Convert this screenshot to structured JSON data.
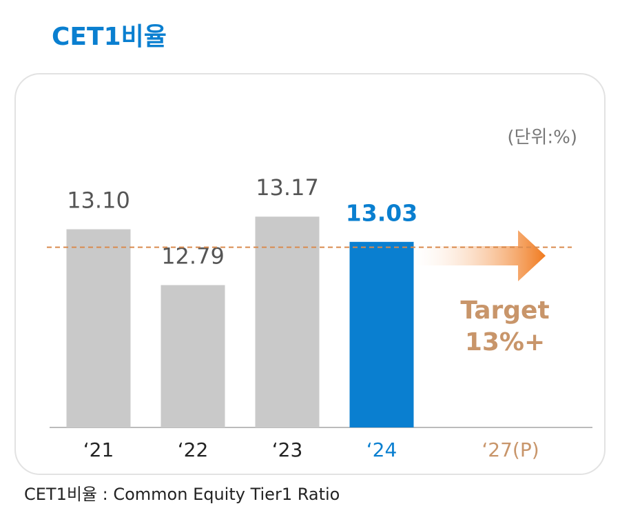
{
  "chart_data": {
    "type": "bar",
    "title": "CET1비율",
    "unit_label": "(단위:%)",
    "categories": [
      "‘21",
      "‘22",
      "‘23",
      "‘24",
      "‘27(P)"
    ],
    "values": [
      13.1,
      12.79,
      13.17,
      13.03,
      null
    ],
    "value_labels": [
      "13.10",
      "12.79",
      "13.17",
      "13.03",
      null
    ],
    "bar_colors": [
      "#c9c9c9",
      "#c9c9c9",
      "#c9c9c9",
      "#0a7fd0",
      null
    ],
    "category_colors": [
      "#222222",
      "#222222",
      "#222222",
      "#0a7fd0",
      "#c8956a"
    ],
    "highlight": 3,
    "ylim": [
      12,
      13.5
    ],
    "target_line": 13,
    "target_color": "#d98a4e",
    "target_text": [
      "Target",
      "13%+"
    ],
    "footnote": "CET1비율 : Common Equity Tier1 Ratio"
  }
}
